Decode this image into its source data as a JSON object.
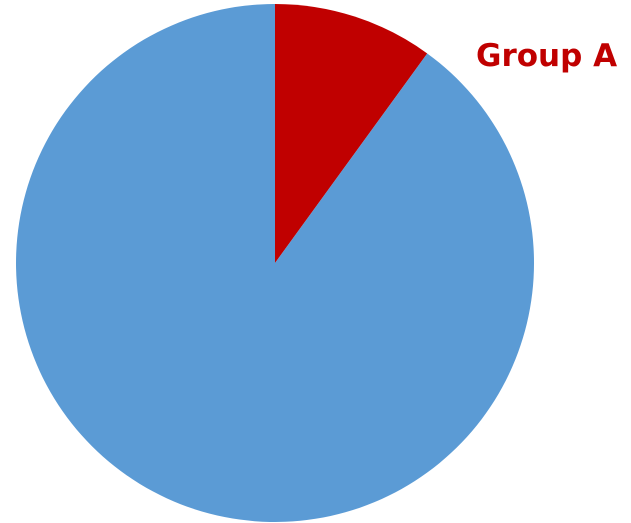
{
  "chart_data": {
    "type": "pie",
    "title": "",
    "slices": [
      {
        "name": "Group A",
        "value": 10,
        "color": "#c00000",
        "label": "Group A",
        "label_color": "#c00000"
      },
      {
        "name": "",
        "value": 90,
        "color": "#5b9bd5",
        "label": ""
      }
    ],
    "start_angle_deg": 0,
    "direction": "clockwise",
    "legend": "none"
  }
}
